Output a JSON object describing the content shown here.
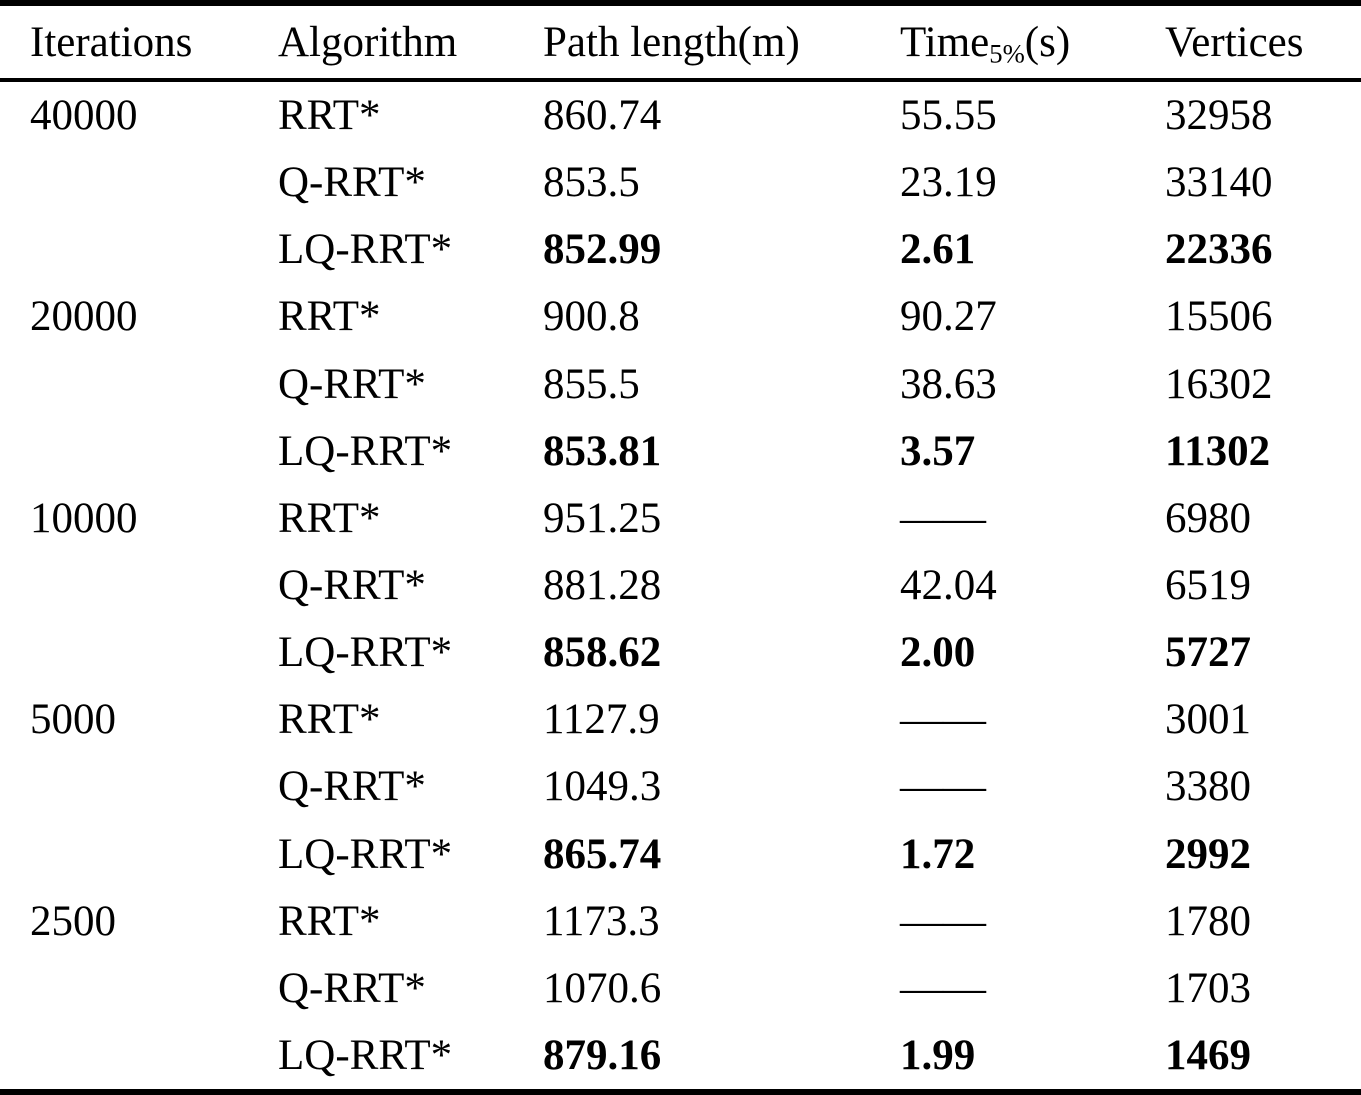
{
  "page": {
    "background": "#ffffff",
    "text_color": "#000000"
  },
  "table": {
    "header": {
      "iterations": "Iterations",
      "algorithm": "Algorithm",
      "path_length": "Path length(m)",
      "time_base": "Time",
      "time_sub": "5%",
      "time_unit": "(s)",
      "vertices": "Vertices"
    },
    "rows": [
      {
        "iterations": "40000",
        "algorithm": "RRT*",
        "path_length": "860.74",
        "time": "55.55",
        "vertices": "32958"
      },
      {
        "iterations": "",
        "algorithm": "Q-RRT*",
        "path_length": "853.5",
        "time": "23.19",
        "vertices": "33140"
      },
      {
        "iterations": "",
        "algorithm": "LQ-RRT*",
        "path_length": "852.99",
        "time": "2.61",
        "vertices": "22336"
      },
      {
        "iterations": "20000",
        "algorithm": "RRT*",
        "path_length": "900.8",
        "time": "90.27",
        "vertices": "15506"
      },
      {
        "iterations": "",
        "algorithm": "Q-RRT*",
        "path_length": "855.5",
        "time": "38.63",
        "vertices": "16302"
      },
      {
        "iterations": "",
        "algorithm": "LQ-RRT*",
        "path_length": "853.81",
        "time": "3.57",
        "vertices": "11302"
      },
      {
        "iterations": "10000",
        "algorithm": "RRT*",
        "path_length": "951.25",
        "time": "——",
        "vertices": "6980"
      },
      {
        "iterations": "",
        "algorithm": "Q-RRT*",
        "path_length": "881.28",
        "time": "42.04",
        "vertices": "6519"
      },
      {
        "iterations": "",
        "algorithm": "LQ-RRT*",
        "path_length": "858.62",
        "time": "2.00",
        "vertices": "5727"
      },
      {
        "iterations": "5000",
        "algorithm": "RRT*",
        "path_length": "1127.9",
        "time": "——",
        "vertices": "3001"
      },
      {
        "iterations": "",
        "algorithm": "Q-RRT*",
        "path_length": "1049.3",
        "time": "——",
        "vertices": "3380"
      },
      {
        "iterations": "",
        "algorithm": "LQ-RRT*",
        "path_length": "865.74",
        "time": "1.72",
        "vertices": "2992"
      },
      {
        "iterations": "2500",
        "algorithm": "RRT*",
        "path_length": "1173.3",
        "time": "——",
        "vertices": "1780"
      },
      {
        "iterations": "",
        "algorithm": "Q-RRT*",
        "path_length": "1070.6",
        "time": "——",
        "vertices": "1703"
      },
      {
        "iterations": "",
        "algorithm": "LQ-RRT*",
        "path_length": "879.16",
        "time": "1.99",
        "vertices": "1469"
      }
    ]
  }
}
